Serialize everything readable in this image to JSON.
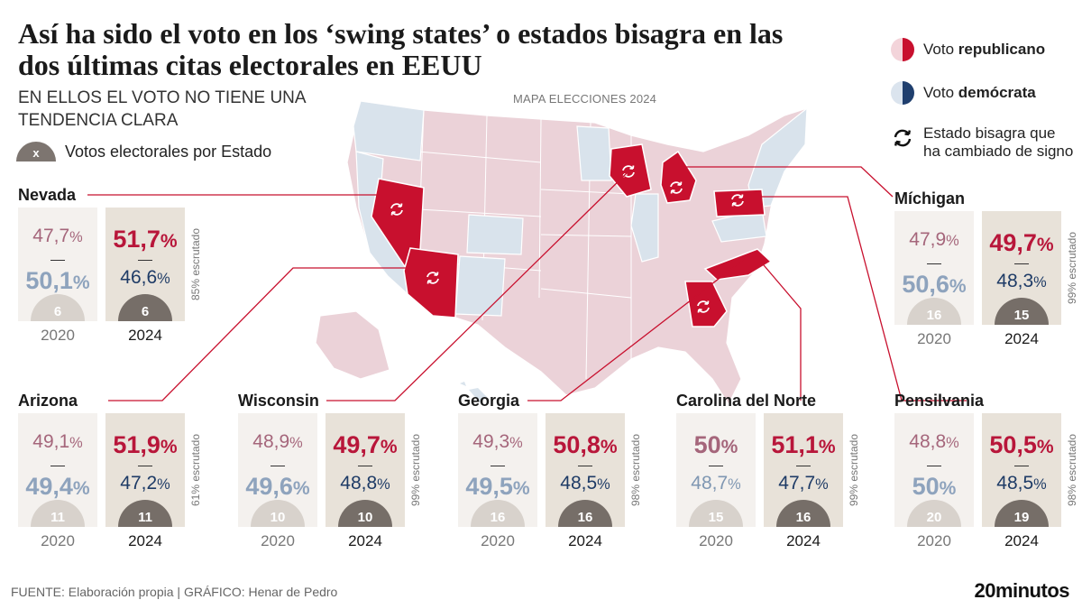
{
  "header": {
    "title": "Así ha sido el voto en los ‘swing states’ o estados bisagra en las dos últimas citas electorales en EEUU",
    "subtitle": "EN ELLOS EL VOTO NO TIENE UNA TENDENCIA CLARA",
    "ev_legend_symbol": "x",
    "ev_legend_label": "Votos electorales por Estado"
  },
  "map": {
    "caption": "MAPA ELECCIONES 2024",
    "colors": {
      "republican_fill": "#ebd2d8",
      "democrat_fill": "#d9e3ec",
      "swing_fill": "#c8102e"
    },
    "highlighted_states": [
      "Nevada",
      "Arizona",
      "Wisconsin",
      "Míchigan",
      "Pensilvania",
      "Carolina del Norte",
      "Georgia"
    ]
  },
  "legend": {
    "rep_prefix": "Voto ",
    "rep_bold": "republicano",
    "dem_prefix": "Voto ",
    "dem_bold": "demócrata",
    "swing_label": "Estado bisagra que ha cambiado de signo",
    "icons": {
      "rep": "half-pie-red-icon",
      "dem": "half-pie-blue-icon",
      "swing": "circular-arrows-icon"
    }
  },
  "states": {
    "nevada": {
      "name": "Nevada",
      "y2020": {
        "rep": "47,7",
        "dem": "50,1",
        "ev": "6"
      },
      "y2024": {
        "rep": "51,7",
        "dem": "46,6",
        "ev": "6"
      },
      "scrutinized": "85% escrutado"
    },
    "michigan": {
      "name": "Míchigan",
      "y2020": {
        "rep": "47,9",
        "dem": "50,6",
        "ev": "16"
      },
      "y2024": {
        "rep": "49,7",
        "dem": "48,3",
        "ev": "15"
      },
      "scrutinized": "99% escrutado"
    },
    "arizona": {
      "name": "Arizona",
      "y2020": {
        "rep": "49,1",
        "dem": "49,4",
        "ev": "11"
      },
      "y2024": {
        "rep": "51,9",
        "dem": "47,2",
        "ev": "11"
      },
      "scrutinized": "61% escrutado"
    },
    "wisconsin": {
      "name": "Wisconsin",
      "y2020": {
        "rep": "48,9",
        "dem": "49,6",
        "ev": "10"
      },
      "y2024": {
        "rep": "49,7",
        "dem": "48,8",
        "ev": "10"
      },
      "scrutinized": "99% escrutado"
    },
    "georgia": {
      "name": "Georgia",
      "y2020": {
        "rep": "49,3",
        "dem": "49,5",
        "ev": "16"
      },
      "y2024": {
        "rep": "50,8",
        "dem": "48,5",
        "ev": "16"
      },
      "scrutinized": "98% escrutado"
    },
    "ncarolina": {
      "name": "Carolina del Norte",
      "y2020": {
        "rep": "50",
        "dem": "48,7",
        "ev": "15"
      },
      "y2024": {
        "rep": "51,1",
        "dem": "47,7",
        "ev": "16"
      },
      "scrutinized": "99% escrutado"
    },
    "pensilvania": {
      "name": "Pensilvania",
      "y2020": {
        "rep": "48,8",
        "dem": "50",
        "ev": "20"
      },
      "y2024": {
        "rep": "50,5",
        "dem": "48,5",
        "ev": "19"
      },
      "scrutinized": "98% escrutado"
    }
  },
  "years": {
    "y2020": "2020",
    "y2024": "2024"
  },
  "units": {
    "percent": "%",
    "dash": "—"
  },
  "footer": {
    "source": "FUENTE: Elaboración propia  |  GRÁFICO: Henar de Pedro",
    "brand": "20minutos"
  }
}
